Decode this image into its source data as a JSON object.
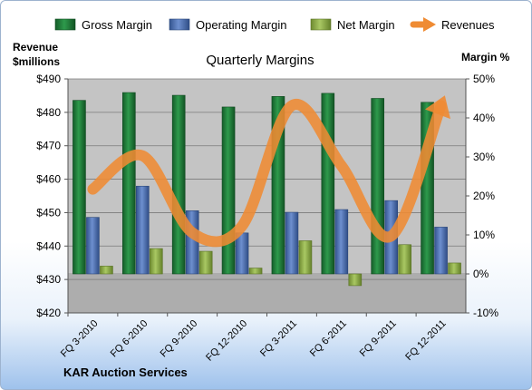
{
  "chart_data": {
    "type": "bar",
    "title": "Quarterly Margins",
    "company": "KAR Auction Services",
    "left_axis_label_line1": "Revenue",
    "left_axis_label_line2": "$millions",
    "right_axis_label": "Margin %",
    "categories": [
      "FQ 3-2010",
      "FQ 6-2010",
      "FQ 9-2010",
      "FQ 12-2010",
      "FQ 3-2011",
      "FQ 6-2011",
      "FQ 9-2011",
      "FQ 12-2011"
    ],
    "series": [
      {
        "name": "Gross Margin",
        "kind": "bar",
        "axis": "right",
        "color": "#1f7a3a",
        "values": [
          44.5,
          46.5,
          45.8,
          42.8,
          45.5,
          46.3,
          45.0,
          44.0
        ]
      },
      {
        "name": "Operating Margin",
        "kind": "bar",
        "axis": "right",
        "color": "#4a6cb0",
        "values": [
          14.5,
          22.5,
          16.2,
          10.5,
          15.8,
          16.5,
          18.8,
          12.0
        ]
      },
      {
        "name": "Net Margin",
        "kind": "bar",
        "axis": "right",
        "color": "#8fb04a",
        "values": [
          2.0,
          6.5,
          5.8,
          1.5,
          8.5,
          -3.0,
          7.5,
          2.8
        ]
      },
      {
        "name": "Revenues",
        "kind": "line",
        "axis": "left",
        "color": "#ef8b33",
        "values": [
          457,
          467,
          444,
          446,
          482,
          464,
          443,
          482
        ]
      }
    ],
    "left_axis": {
      "min": 420,
      "max": 490,
      "ticks": [
        "$420",
        "$430",
        "$440",
        "$450",
        "$460",
        "$470",
        "$480",
        "$490"
      ]
    },
    "right_axis": {
      "min": -10,
      "max": 50,
      "ticks": [
        "-10%",
        "0%",
        "10%",
        "20%",
        "30%",
        "40%",
        "50%"
      ]
    },
    "legend_position": "top",
    "grid": true,
    "colors": {
      "plot_bg": "#c4c4c4",
      "plot_bg_below_zero": "#adadad",
      "grid": "#7a7a7a"
    }
  }
}
